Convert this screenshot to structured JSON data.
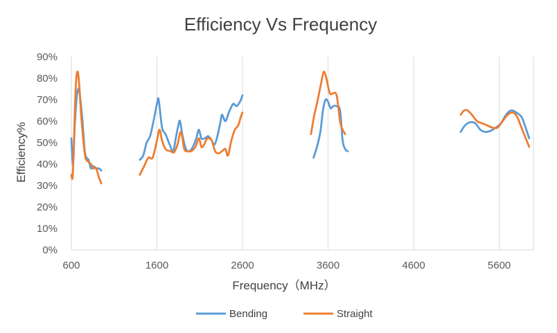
{
  "chart_data": {
    "type": "line",
    "title": "Efficiency Vs Frequency",
    "xlabel": "Frequency（MHz）",
    "ylabel": "Efficiency%",
    "xlim": [
      600,
      6000
    ],
    "ylim": [
      0,
      90
    ],
    "x_ticks": [
      600,
      1600,
      2600,
      3600,
      4600,
      5600
    ],
    "x_tick_labels": [
      "600",
      "1600",
      "2600",
      "3600",
      "4600",
      "5600"
    ],
    "y_ticks": [
      0,
      10,
      20,
      30,
      40,
      50,
      60,
      70,
      80,
      90
    ],
    "y_tick_labels": [
      "0%",
      "10%",
      "20%",
      "30%",
      "40%",
      "50%",
      "60%",
      "70%",
      "80%",
      "90%"
    ],
    "grid": "vertical",
    "legend": "bottom",
    "series": [
      {
        "name": "Bending",
        "color": "#5b9bd5",
        "segments": [
          [
            [
              600,
              52
            ],
            [
              620,
              40
            ],
            [
              640,
              58
            ],
            [
              660,
              70
            ],
            [
              680,
              75
            ],
            [
              700,
              72
            ],
            [
              730,
              60
            ],
            [
              760,
              45
            ],
            [
              800,
              42
            ],
            [
              830,
              38
            ],
            [
              860,
              39
            ],
            [
              890,
              38
            ],
            [
              920,
              38
            ],
            [
              950,
              37
            ]
          ],
          [
            [
              1400,
              42
            ],
            [
              1440,
              44
            ],
            [
              1480,
              50
            ],
            [
              1520,
              53
            ],
            [
              1560,
              60
            ],
            [
              1600,
              68
            ],
            [
              1620,
              70
            ],
            [
              1660,
              57
            ],
            [
              1700,
              54
            ],
            [
              1750,
              49
            ],
            [
              1790,
              46
            ],
            [
              1820,
              52
            ],
            [
              1850,
              58
            ],
            [
              1870,
              60
            ],
            [
              1900,
              53
            ],
            [
              1940,
              47
            ],
            [
              1980,
              46
            ],
            [
              2020,
              48
            ],
            [
              2060,
              52
            ],
            [
              2090,
              56
            ],
            [
              2120,
              52
            ],
            [
              2160,
              52
            ],
            [
              2200,
              53
            ],
            [
              2240,
              51
            ],
            [
              2270,
              49
            ],
            [
              2300,
              52
            ],
            [
              2340,
              59
            ],
            [
              2360,
              63
            ],
            [
              2400,
              60
            ],
            [
              2440,
              64
            ],
            [
              2490,
              68
            ],
            [
              2530,
              67
            ],
            [
              2570,
              69
            ],
            [
              2600,
              72
            ]
          ],
          [
            [
              3430,
              43
            ],
            [
              3470,
              48
            ],
            [
              3510,
              55
            ],
            [
              3540,
              65
            ],
            [
              3570,
              70
            ],
            [
              3600,
              69
            ],
            [
              3630,
              66
            ],
            [
              3660,
              67
            ],
            [
              3700,
              67
            ],
            [
              3740,
              65
            ],
            [
              3770,
              51
            ],
            [
              3800,
              47
            ],
            [
              3830,
              46
            ]
          ],
          [
            [
              5150,
              55
            ],
            [
              5200,
              58
            ],
            [
              5260,
              59.5
            ],
            [
              5320,
              59
            ],
            [
              5380,
              56
            ],
            [
              5440,
              55
            ],
            [
              5500,
              55.5
            ],
            [
              5560,
              57
            ],
            [
              5620,
              59
            ],
            [
              5680,
              63
            ],
            [
              5740,
              65
            ],
            [
              5800,
              64
            ],
            [
              5860,
              62
            ],
            [
              5900,
              58
            ],
            [
              5950,
              52
            ]
          ]
        ]
      },
      {
        "name": "Straight",
        "color": "#ed7d31",
        "segments": [
          [
            [
              600,
              35
            ],
            [
              615,
              34
            ],
            [
              630,
              50
            ],
            [
              650,
              75
            ],
            [
              670,
              83
            ],
            [
              690,
              78
            ],
            [
              720,
              60
            ],
            [
              760,
              44
            ],
            [
              800,
              41
            ],
            [
              830,
              40
            ],
            [
              860,
              38
            ],
            [
              890,
              38
            ],
            [
              920,
              34
            ],
            [
              950,
              31
            ]
          ],
          [
            [
              1400,
              35
            ],
            [
              1450,
              39
            ],
            [
              1500,
              43
            ],
            [
              1550,
              43
            ],
            [
              1600,
              51
            ],
            [
              1630,
              56
            ],
            [
              1660,
              51
            ],
            [
              1700,
              47
            ],
            [
              1760,
              46
            ],
            [
              1800,
              45.5
            ],
            [
              1840,
              49
            ],
            [
              1880,
              55
            ],
            [
              1920,
              47
            ],
            [
              1960,
              46
            ],
            [
              2000,
              46
            ],
            [
              2050,
              48
            ],
            [
              2090,
              52
            ],
            [
              2120,
              48
            ],
            [
              2150,
              49
            ],
            [
              2190,
              52
            ],
            [
              2240,
              51
            ],
            [
              2280,
              46
            ],
            [
              2320,
              45
            ],
            [
              2360,
              46
            ],
            [
              2400,
              47
            ],
            [
              2430,
              44
            ],
            [
              2470,
              51
            ],
            [
              2510,
              56
            ],
            [
              2550,
              58
            ],
            [
              2580,
              62
            ],
            [
              2600,
              64
            ]
          ],
          [
            [
              3400,
              54
            ],
            [
              3440,
              63
            ],
            [
              3480,
              70
            ],
            [
              3520,
              78
            ],
            [
              3550,
              83
            ],
            [
              3580,
              80
            ],
            [
              3620,
              73
            ],
            [
              3660,
              73
            ],
            [
              3700,
              72
            ],
            [
              3740,
              60
            ],
            [
              3770,
              56
            ],
            [
              3800,
              54
            ]
          ],
          [
            [
              5150,
              63
            ],
            [
              5190,
              65
            ],
            [
              5230,
              65
            ],
            [
              5280,
              63
            ],
            [
              5340,
              60
            ],
            [
              5400,
              59
            ],
            [
              5460,
              58
            ],
            [
              5520,
              57
            ],
            [
              5580,
              57
            ],
            [
              5640,
              60
            ],
            [
              5700,
              63
            ],
            [
              5760,
              64
            ],
            [
              5810,
              62
            ],
            [
              5860,
              57
            ],
            [
              5910,
              52
            ],
            [
              5950,
              48
            ]
          ]
        ]
      }
    ]
  }
}
